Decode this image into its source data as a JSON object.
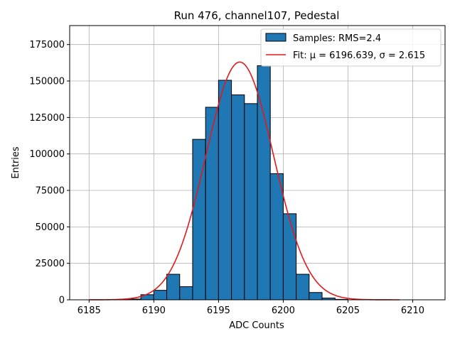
{
  "chart_data": {
    "type": "bar",
    "title": "Run 476, channel107, Pedestal",
    "xlabel": "ADC Counts",
    "ylabel": "Entries",
    "xlim": [
      6183.5,
      6212.5
    ],
    "ylim": [
      0,
      188000
    ],
    "grid": true,
    "legend_position": "top-right",
    "x_ticks": [
      6185,
      6190,
      6195,
      6200,
      6205,
      6210
    ],
    "x_tick_labels": [
      "6185",
      "6190",
      "6195",
      "6200",
      "6205",
      "6210"
    ],
    "y_ticks": [
      0,
      25000,
      50000,
      75000,
      100000,
      125000,
      150000,
      175000
    ],
    "y_tick_labels": [
      "0",
      "25000",
      "50000",
      "75000",
      "100000",
      "125000",
      "150000",
      "175000"
    ],
    "bin_width": 1,
    "bins": [
      {
        "x0": 6188,
        "value": 500
      },
      {
        "x0": 6189,
        "value": 3500
      },
      {
        "x0": 6190,
        "value": 6500
      },
      {
        "x0": 6191,
        "value": 17500
      },
      {
        "x0": 6192,
        "value": 9000
      },
      {
        "x0": 6193,
        "value": 110000
      },
      {
        "x0": 6194,
        "value": 132000
      },
      {
        "x0": 6195,
        "value": 150500
      },
      {
        "x0": 6196,
        "value": 140500
      },
      {
        "x0": 6197,
        "value": 134500
      },
      {
        "x0": 6198,
        "value": 160500
      },
      {
        "x0": 6199,
        "value": 86500
      },
      {
        "x0": 6200,
        "value": 59000
      },
      {
        "x0": 6201,
        "value": 17500
      },
      {
        "x0": 6202,
        "value": 5000
      },
      {
        "x0": 6203,
        "value": 1200
      },
      {
        "x0": 6204,
        "value": 300
      }
    ],
    "fit": {
      "type": "gaussian",
      "mu": 6196.639,
      "sigma": 2.615,
      "amplitude": 163000,
      "x_range": [
        6185,
        6209
      ]
    },
    "series": [
      {
        "name": "Samples: RMS=2.4",
        "kind": "histogram",
        "color": "#1f77b4"
      },
      {
        "name": "Fit: μ = 6196.639, σ = 2.615",
        "kind": "line",
        "color": "#e31a1c"
      }
    ]
  }
}
